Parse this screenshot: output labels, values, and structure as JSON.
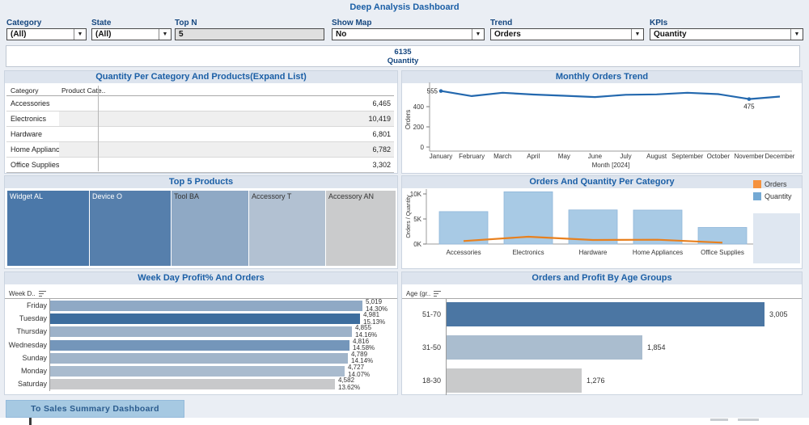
{
  "app": {
    "title": "Deep Analysis Dashboard"
  },
  "filters": [
    {
      "id": "category",
      "label": "Category",
      "value": "(All)",
      "control": "dropdown"
    },
    {
      "id": "state",
      "label": "State",
      "value": "(All)",
      "control": "dropdown"
    },
    {
      "id": "top-n",
      "label": "Top N",
      "value": "5",
      "control": "textbox"
    },
    {
      "id": "show-map",
      "label": "Show Map",
      "value": "No",
      "control": "dropdown"
    },
    {
      "id": "trend",
      "label": "Trend",
      "value": "Orders",
      "control": "dropdown"
    },
    {
      "id": "kpis",
      "label": "KPIs",
      "value": "Quantity",
      "control": "dropdown"
    }
  ],
  "kpi": {
    "value": "6135",
    "label": "Quantity"
  },
  "panels": {
    "category_table": {
      "title": "Quantity Per Category And Products(Expand List)",
      "columns": [
        "Category",
        "Product Cate.."
      ],
      "rows": [
        {
          "category": "Accessories",
          "value": "6,465"
        },
        {
          "category": "Electronics",
          "value": "10,419"
        },
        {
          "category": "Hardware",
          "value": "6,801"
        },
        {
          "category": "Home Appliances",
          "value": "6,782"
        },
        {
          "category": "Office Supplies",
          "value": "3,302"
        }
      ]
    },
    "monthly_trend": {
      "title": "Monthly Orders Trend"
    },
    "top_products": {
      "title": "Top 5 Products"
    },
    "orders_quantity": {
      "title": "Orders And Quantity Per Category"
    },
    "weekday": {
      "title": "Week Day Profit% And Orders",
      "header": "Week D.."
    },
    "age_groups": {
      "title": "Orders and Profit By Age Groups",
      "header": "Age (gr.."
    }
  },
  "footer": {
    "button_label": "To Sales Summary Dashboard"
  },
  "chart_data": [
    {
      "id": "monthly_trend",
      "type": "line",
      "title": "Monthly Orders Trend",
      "x": [
        "January",
        "February",
        "March",
        "April",
        "May",
        "June",
        "July",
        "August",
        "September",
        "October",
        "November",
        "December"
      ],
      "values": [
        555,
        505,
        538,
        520,
        508,
        495,
        518,
        522,
        538,
        524,
        475,
        500
      ],
      "xlabel": "Month [2024]",
      "ylabel": "Orders",
      "yticks": [
        0,
        200,
        400
      ],
      "ylim": [
        0,
        628
      ],
      "grid": false,
      "line_color": "#2368AE",
      "annotated_points": [
        {
          "month": "January",
          "label": "555"
        },
        {
          "month": "November",
          "label": "475"
        }
      ]
    },
    {
      "id": "top_products",
      "type": "treemap",
      "title": "Top 5 Products",
      "items": [
        {
          "name": "Widget AL",
          "color": "#4B78A9",
          "text_color": "#FFFFFF",
          "rel_width": 101
        },
        {
          "name": "Device O",
          "color": "#567FAC",
          "text_color": "#FFFFFF",
          "rel_width": 100
        },
        {
          "name": "Tool BA",
          "color": "#8FA9C5",
          "text_color": "#333333",
          "rel_width": 95
        },
        {
          "name": "Accessory T",
          "color": "#B2C1D2",
          "text_color": "#333333",
          "rel_width": 94
        },
        {
          "name": "Accessory AN",
          "color": "#CACBCC",
          "text_color": "#333333",
          "rel_width": 86
        }
      ]
    },
    {
      "id": "orders_quantity",
      "type": "bar+line",
      "title": "Orders And Quantity Per Category",
      "categories": [
        "Accessories",
        "Electronics",
        "Hardware",
        "Home Appliances",
        "Office Supplies"
      ],
      "series": [
        {
          "name": "Orders",
          "type": "line",
          "color": "#E8801E",
          "values": [
            600,
            1450,
            800,
            850,
            280
          ]
        },
        {
          "name": "Quantity",
          "type": "bar",
          "color": "#A8CAE5",
          "values": [
            6465,
            10419,
            6801,
            6782,
            3302
          ]
        }
      ],
      "ylabel": "Orders / Quantity",
      "ytick_labels": [
        "0K",
        "5K",
        "10K"
      ],
      "ytick_values": [
        0,
        5000,
        10000
      ],
      "legend_position": "right",
      "legend": [
        {
          "name": "Orders",
          "swatch": "#F5923E"
        },
        {
          "name": "Quantity",
          "swatch": "#74A9D4"
        }
      ]
    },
    {
      "id": "weekday",
      "type": "bar",
      "orientation": "horizontal",
      "title": "Week Day Profit% And Orders",
      "categories": [
        "Friday",
        "Tuesday",
        "Thursday",
        "Wednesday",
        "Sunday",
        "Monday",
        "Saturday"
      ],
      "values": [
        5019,
        4981,
        4855,
        4816,
        4789,
        4727,
        4582
      ],
      "value_labels": [
        "5,019",
        "4,981",
        "4,855",
        "4,816",
        "4,789",
        "4,727",
        "4,582"
      ],
      "pct_labels": [
        "14.30%",
        "15.13%",
        "14.16%",
        "14.58%",
        "14.14%",
        "14.07%",
        "13.62%"
      ],
      "bar_colors": [
        "#8FA9C5",
        "#3D6D9E",
        "#9DB2C9",
        "#7496BA",
        "#A1B5CA",
        "#A9BBCE",
        "#C8C9CB"
      ],
      "xlim": [
        0,
        5019
      ]
    },
    {
      "id": "age_groups",
      "type": "bar",
      "orientation": "horizontal",
      "title": "Orders and Profit By Age Groups",
      "categories": [
        "51-70",
        "31-50",
        "18-30"
      ],
      "values": [
        3005,
        1854,
        1276
      ],
      "value_labels": [
        "3,005",
        "1,854",
        "1,276"
      ],
      "bar_colors": [
        "#4B76A3",
        "#AABDCF",
        "#C9CACB"
      ],
      "xlim": [
        0,
        3100
      ]
    }
  ]
}
